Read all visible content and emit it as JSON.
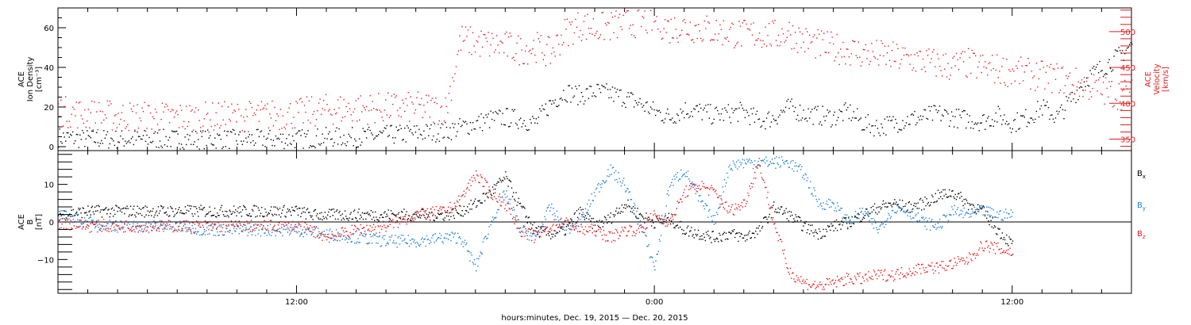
{
  "chart_data": [
    {
      "type": "scatter",
      "panel": "density-velocity",
      "x_unit": "hours from Dec. 19, 2015 00:00",
      "xlim": [
        4,
        40
      ],
      "ylabel_lines": [
        "ACE",
        "Ion Density",
        "[cm⁻³]"
      ],
      "ylim": [
        -2,
        70
      ],
      "yticks": [
        "0",
        "20",
        "40",
        "60"
      ],
      "ylabel2_lines": [
        "ACE",
        "Velocity",
        "[km/s]"
      ],
      "y2lim": [
        334,
        533
      ],
      "y2ticks": [
        "350",
        "400",
        "450",
        "500"
      ],
      "grid": false,
      "series": [
        {
          "axis": "left",
          "color": "#000000",
          "x": [
            4.0,
            5.0,
            6.0,
            7.0,
            8.0,
            9.0,
            10.0,
            11.0,
            12.0,
            13.0,
            14.0,
            15.0,
            16.0,
            17.0,
            17.5,
            18.5,
            19.0,
            19.5,
            20.0,
            20.5,
            21.0,
            21.5,
            22.0,
            22.5,
            23.0,
            23.5,
            24.0,
            24.5,
            25.0,
            25.5,
            26.0,
            26.5,
            27.0,
            27.5,
            28.0,
            28.5,
            29.0,
            29.5,
            30.0,
            30.5,
            31.0,
            31.5,
            32.0,
            32.5,
            33.0,
            33.5,
            34.0,
            34.5,
            35.0,
            35.5,
            36.0,
            36.5,
            37.0,
            37.5,
            38.0,
            38.5,
            39.0,
            39.5,
            40.0
          ],
          "y": [
            5,
            4,
            4,
            4,
            4,
            4,
            4,
            4,
            4,
            5,
            5,
            6,
            7,
            8,
            10,
            14,
            15,
            14,
            12,
            22,
            28,
            26,
            28,
            27,
            25,
            22,
            18,
            15,
            19,
            18,
            16,
            17,
            18,
            13,
            15,
            20,
            17,
            16,
            15,
            18,
            12,
            10,
            12,
            14,
            15,
            17,
            15,
            14,
            13,
            16,
            12,
            15,
            20,
            15,
            25,
            35,
            40,
            45,
            52
          ]
        },
        {
          "axis": "right",
          "color": "#e41a1c",
          "x": [
            4.0,
            5.0,
            6.0,
            7.0,
            8.0,
            9.0,
            10.0,
            11.0,
            12.0,
            13.0,
            14.0,
            15.0,
            16.0,
            17.0,
            17.5,
            18.0,
            19.0,
            19.5,
            20.0,
            20.5,
            21.0,
            21.5,
            22.0,
            22.5,
            23.0,
            23.5,
            24.0,
            24.5,
            25.0,
            25.5,
            26.0,
            26.5,
            27.0,
            27.5,
            28.0,
            28.5,
            29.0,
            29.5,
            30.0,
            30.5,
            31.0,
            31.5,
            32.0,
            32.5,
            33.0,
            33.5,
            34.0,
            34.5,
            35.0,
            35.5,
            36.0,
            36.5,
            37.0,
            37.5,
            38.0,
            38.5,
            39.0,
            39.5,
            40.0
          ],
          "y": [
            390,
            385,
            383,
            382,
            381,
            381,
            382,
            384,
            386,
            392,
            393,
            394,
            395,
            392,
            490,
            485,
            480,
            475,
            480,
            470,
            500,
            510,
            505,
            508,
            512,
            515,
            517,
            505,
            508,
            505,
            502,
            500,
            496,
            498,
            495,
            500,
            488,
            482,
            478,
            475,
            470,
            468,
            465,
            462,
            460,
            455,
            452,
            456,
            450,
            448,
            445,
            442,
            438,
            436,
            430,
            426,
            418,
            414,
            413
          ]
        }
      ]
    },
    {
      "type": "scatter",
      "panel": "magnetic-field",
      "x_unit": "hours from Dec. 19, 2015 00:00",
      "xlim": [
        4,
        40
      ],
      "ylabel_lines": [
        "ACE",
        "B",
        "[nT]"
      ],
      "ylim": [
        -19,
        19
      ],
      "yticks": [
        "−10",
        "0",
        "10"
      ],
      "zero_line": true,
      "grid": false,
      "xlabel": "hours:minutes, Dec. 19, 2015 — Dec. 20, 2015",
      "xticks": [
        {
          "hour": 12,
          "label": "12:00"
        },
        {
          "hour": 24,
          "label": "0:00"
        },
        {
          "hour": 36,
          "label": "12:00"
        }
      ],
      "legend_placement": "right",
      "series": [
        {
          "name": "B",
          "sub": "x",
          "color": "#000000",
          "x": [
            4.0,
            5.0,
            6.0,
            7.0,
            8.0,
            9.0,
            10.0,
            11.0,
            12.0,
            12.5,
            13.0,
            14.0,
            15.0,
            16.0,
            17.0,
            17.5,
            18.0,
            18.5,
            19.0,
            19.5,
            20.0,
            20.5,
            21.0,
            21.5,
            22.0,
            22.5,
            23.0,
            23.5,
            24.0,
            24.5,
            25.0,
            25.5,
            26.0,
            26.5,
            27.0,
            27.5,
            28.0,
            28.5,
            29.0,
            29.5,
            30.0,
            30.5,
            31.0,
            31.5,
            32.0,
            32.5,
            33.0,
            33.5,
            34.0,
            34.5,
            35.0,
            35.5,
            36.0
          ],
          "y": [
            2,
            3,
            3,
            3,
            3,
            3,
            3,
            3,
            3,
            2,
            2,
            2,
            2,
            2,
            2,
            3,
            5,
            8,
            12,
            4,
            -2,
            -3,
            -2,
            3,
            -1,
            1,
            5,
            2,
            0,
            1,
            -2,
            -3,
            -4,
            -3,
            -4,
            -2,
            4,
            2,
            -1,
            -3,
            -1,
            0,
            2,
            4,
            5,
            4,
            5,
            7,
            8,
            5,
            3,
            -2,
            -6
          ]
        },
        {
          "name": "B",
          "sub": "y",
          "color": "#1c7fd6",
          "x": [
            4.0,
            5.0,
            6.0,
            7.0,
            8.0,
            9.0,
            10.0,
            11.0,
            12.0,
            13.0,
            14.0,
            15.0,
            16.0,
            17.0,
            17.5,
            18.0,
            18.5,
            19.0,
            19.5,
            20.0,
            20.5,
            21.0,
            21.5,
            22.0,
            22.5,
            23.0,
            23.5,
            24.0,
            24.5,
            25.0,
            25.5,
            26.0,
            26.5,
            27.0,
            27.5,
            28.0,
            28.5,
            29.0,
            29.5,
            30.0,
            30.5,
            31.0,
            31.5,
            32.0,
            32.5,
            33.0,
            33.5,
            34.0,
            34.5,
            35.0,
            35.5,
            36.0
          ],
          "y": [
            2,
            0,
            -1,
            -1,
            -1,
            -2,
            -2,
            -2,
            -2,
            -3,
            -4,
            -5,
            -5,
            -4,
            -4,
            -12,
            0,
            8,
            -2,
            -4,
            4,
            -2,
            0,
            8,
            14,
            10,
            0,
            -12,
            10,
            14,
            6,
            0,
            15,
            16,
            16,
            16,
            16,
            13,
            5,
            5,
            0,
            3,
            -2,
            4,
            3,
            0,
            -1,
            3,
            2,
            3,
            2,
            2
          ]
        },
        {
          "name": "B",
          "sub": "z",
          "color": "#e41a1c",
          "x": [
            4.0,
            5.0,
            6.0,
            7.0,
            8.0,
            9.0,
            10.0,
            11.0,
            12.0,
            12.5,
            13.0,
            14.0,
            15.0,
            16.0,
            17.0,
            17.5,
            18.0,
            18.5,
            19.0,
            19.5,
            20.0,
            20.5,
            21.0,
            21.5,
            22.0,
            22.5,
            23.0,
            23.5,
            24.0,
            24.5,
            25.0,
            25.5,
            26.0,
            26.5,
            27.0,
            27.5,
            28.0,
            28.5,
            29.0,
            29.5,
            30.0,
            30.5,
            31.0,
            31.5,
            32.0,
            32.5,
            33.0,
            33.5,
            34.0,
            34.5,
            35.0,
            35.5,
            36.0
          ],
          "y": [
            0,
            -1,
            -1,
            -1,
            -1,
            -1,
            -1,
            -1,
            -1,
            -2,
            -4,
            -2,
            -1,
            2,
            3,
            6,
            13,
            8,
            5,
            -2,
            -4,
            -1,
            0,
            -2,
            -2,
            -4,
            -2,
            -2,
            2,
            0,
            8,
            10,
            8,
            3,
            5,
            16,
            0,
            -13,
            -16,
            -17,
            -16,
            -15,
            -15,
            -14,
            -14,
            -13,
            -12,
            -12,
            -11,
            -10,
            -6,
            -7,
            -8
          ]
        }
      ]
    }
  ]
}
